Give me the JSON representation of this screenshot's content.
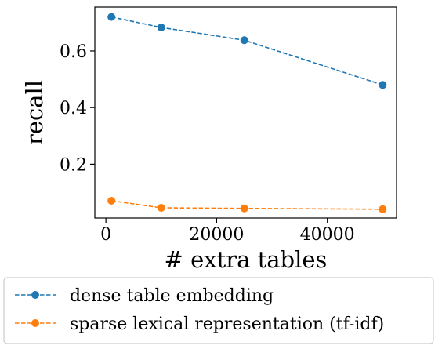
{
  "chart_data": {
    "type": "line",
    "xlabel": "# extra tables",
    "ylabel": "recall",
    "xlim": [
      -2000,
      52500
    ],
    "ylim": [
      0.01,
      0.755
    ],
    "x_ticks": [
      0,
      20000,
      40000
    ],
    "y_ticks": [
      0.2,
      0.4,
      0.6
    ],
    "grid": false,
    "legend_position": "bottom",
    "x": [
      1000,
      10000,
      25000,
      50000
    ],
    "series": [
      {
        "name": "dense table embedding",
        "color": "#1f77b4",
        "values": [
          0.72,
          0.683,
          0.638,
          0.48
        ],
        "linestyle": "dashed",
        "marker": "circle"
      },
      {
        "name": "sparse lexical representation (tf-idf)",
        "color": "#ff7f0e",
        "values": [
          0.071,
          0.046,
          0.044,
          0.041
        ],
        "linestyle": "dashed",
        "marker": "circle"
      }
    ]
  }
}
